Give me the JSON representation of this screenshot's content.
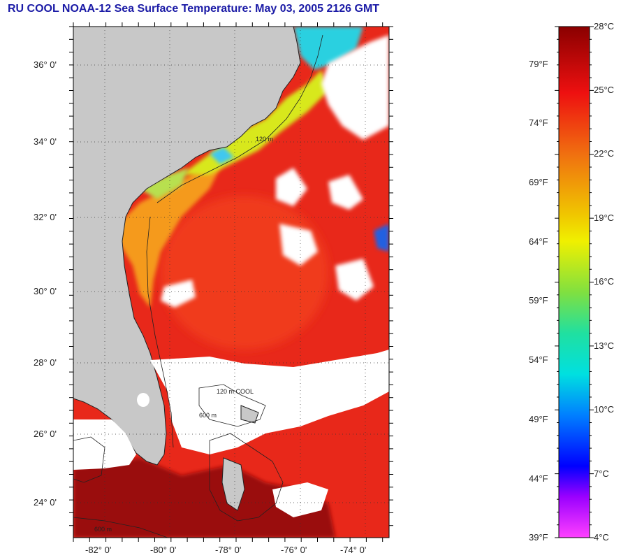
{
  "title": "RU COOL  NOAA-12  Sea Surface Temperature:  May 03, 2005 2126 GMT",
  "map": {
    "lat_labels": [
      "36° 0'",
      "34° 0'",
      "32° 0'",
      "30° 0'",
      "28° 0'",
      "26° 0'",
      "24° 0'"
    ],
    "lon_labels": [
      "-82° 0'",
      "-80° 0'",
      "-78° 0'",
      "-76° 0'",
      "-74° 0'"
    ],
    "contour_labels": [
      "120 m",
      "600 m",
      "120 m COOL",
      "600 m"
    ],
    "colors": {
      "land": "#c8c8c8",
      "cloud": "#ffffff",
      "gulf_stream": "#e8281a",
      "warm_core": "#f03a1e",
      "shelf_warm": "#f59a1a",
      "shelf_cool": "#d8e81a",
      "coastal_cold": "#2ad0e0",
      "hot": "#9a0808"
    }
  },
  "colorbar": {
    "celsius_labels": [
      "28°C",
      "25°C",
      "22°C",
      "19°C",
      "16°C",
      "13°C",
      "10°C",
      "7°C",
      "4°C"
    ],
    "fahrenheit_labels": [
      "79°F",
      "74°F",
      "69°F",
      "64°F",
      "59°F",
      "54°F",
      "49°F",
      "44°F",
      "39°F"
    ],
    "gradient_stops": [
      "#8a0000",
      "#ee1010",
      "#f07010",
      "#f0c800",
      "#f0f000",
      "#80e040",
      "#20e0a0",
      "#00e0e0",
      "#0080ff",
      "#0000ff",
      "#9a00ff",
      "#ff40ff"
    ]
  }
}
